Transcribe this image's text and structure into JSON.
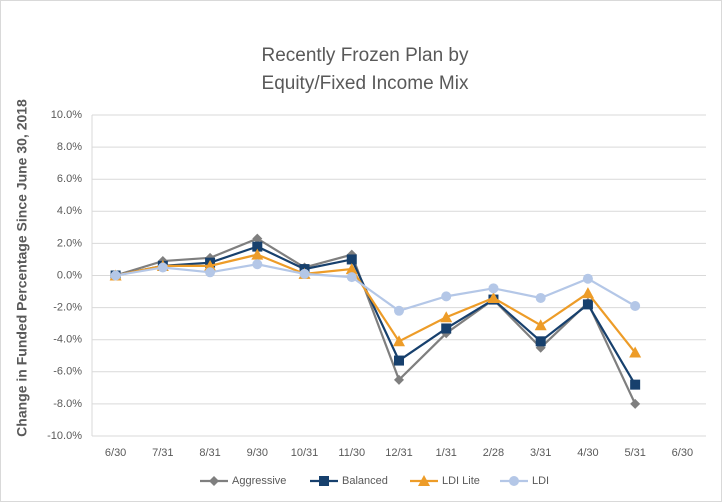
{
  "chart_data": {
    "type": "line",
    "title": [
      "Recently Frozen Plan by",
      "Equity/Fixed Income Mix"
    ],
    "y_label": "Change in Funded Percentage Since June 30, 2018",
    "categories": [
      "6/30",
      "7/31",
      "8/31",
      "9/30",
      "10/31",
      "11/30",
      "12/31",
      "1/31",
      "2/28",
      "3/31",
      "4/30",
      "5/31",
      "6/30"
    ],
    "series": [
      {
        "name": "Aggressive",
        "color": "#7f7f7f",
        "marker": "diamond",
        "values": [
          0,
          0.9,
          1.1,
          2.3,
          0.5,
          1.3,
          -6.5,
          -3.6,
          -1.5,
          -4.5,
          -1.7,
          -8.0,
          null
        ]
      },
      {
        "name": "Balanced",
        "color": "#17406d",
        "marker": "square",
        "values": [
          0,
          0.6,
          0.8,
          1.8,
          0.4,
          1.0,
          -5.3,
          -3.3,
          -1.5,
          -4.1,
          -1.8,
          -6.8,
          null
        ]
      },
      {
        "name": "LDI Lite",
        "color": "#ed9c28",
        "marker": "triangle",
        "values": [
          0,
          0.6,
          0.6,
          1.3,
          0.1,
          0.4,
          -4.1,
          -2.6,
          -1.4,
          -3.1,
          -1.1,
          -4.8,
          null
        ]
      },
      {
        "name": "LDI",
        "color": "#b4c7e7",
        "marker": "circle",
        "values": [
          0,
          0.5,
          0.2,
          0.7,
          0.1,
          -0.1,
          -2.2,
          -1.3,
          -0.8,
          -1.4,
          -0.2,
          -1.9,
          null
        ]
      }
    ],
    "ylim": [
      -10,
      10
    ],
    "yticks": [
      {
        "value": -10,
        "label": "-10.0%"
      },
      {
        "value": -8,
        "label": "-8.0%"
      },
      {
        "value": -6,
        "label": "-6.0%"
      },
      {
        "value": -4,
        "label": "-4.0%"
      },
      {
        "value": -2,
        "label": "-2.0%"
      },
      {
        "value": 0,
        "label": "0.0%"
      },
      {
        "value": 2,
        "label": "2.0%"
      },
      {
        "value": 4,
        "label": "4.0%"
      },
      {
        "value": 6,
        "label": "6.0%"
      },
      {
        "value": 8,
        "label": "8.0%"
      },
      {
        "value": 10,
        "label": "10.0%"
      }
    ],
    "grid": true,
    "legend": "bottom"
  }
}
